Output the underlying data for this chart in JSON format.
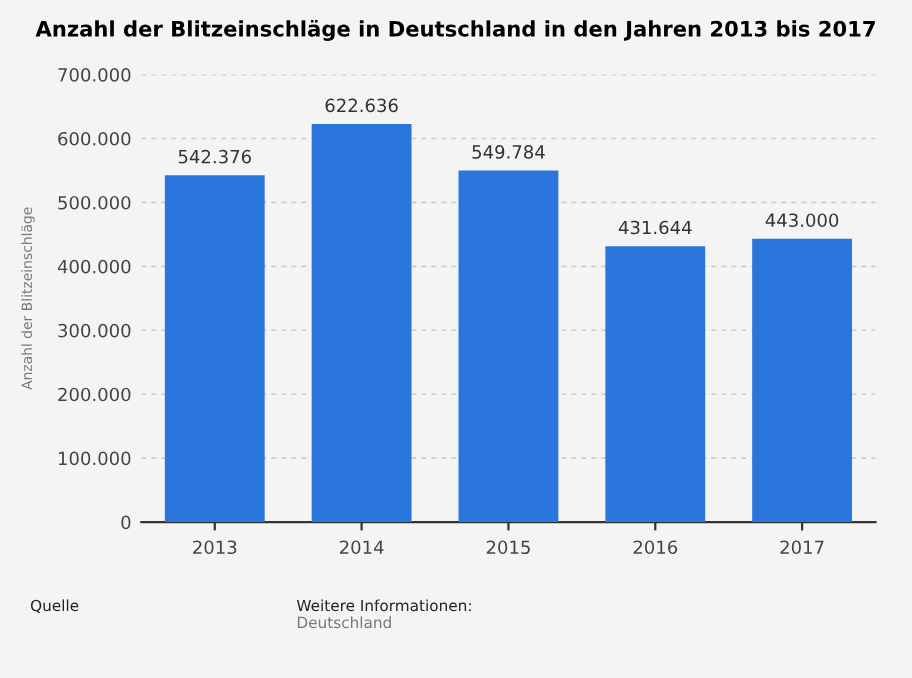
{
  "chart_data": {
    "type": "bar",
    "title": "Anzahl der Blitzeinschläge in Deutschland in den Jahren 2013 bis 2017",
    "ylabel": "Anzahl der Blitzeinschläge",
    "categories": [
      "2013",
      "2014",
      "2015",
      "2016",
      "2017"
    ],
    "values": [
      542376,
      622636,
      549784,
      431644,
      443000
    ],
    "value_labels": [
      "542.376",
      "622.636",
      "549.784",
      "431.644",
      "443.000"
    ],
    "color": "#2a76dd",
    "ylim": [
      0,
      700000
    ],
    "yticks": [
      {
        "value": 0,
        "label": "0"
      },
      {
        "value": 100000,
        "label": "100.000"
      },
      {
        "value": 200000,
        "label": "200.000"
      },
      {
        "value": 300000,
        "label": "300.000"
      },
      {
        "value": 400000,
        "label": "400.000"
      },
      {
        "value": 500000,
        "label": "500.000"
      },
      {
        "value": 600000,
        "label": "600.000"
      },
      {
        "value": 700000,
        "label": "700.000"
      }
    ],
    "grid": "y",
    "legend": false,
    "annotations": [
      "Quelle",
      "Weitere Informationen:",
      "Deutschland"
    ]
  }
}
